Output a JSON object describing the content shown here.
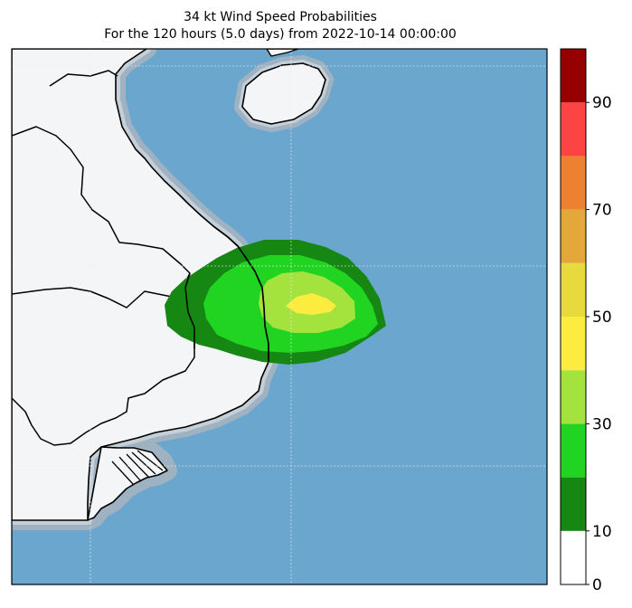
{
  "title": {
    "line1": "34 kt Wind Speed Probabilities",
    "line2": "For the 120 hours (5.0 days) from 2022-10-14 00:00:00"
  },
  "colors": {
    "ocean": "#6aa6cd",
    "land": "#f4f5f7",
    "coast_halo_outer": "#9fb2c2",
    "coast_halo_inner": "#c4cfd8"
  },
  "colorbar": {
    "levels": [
      0,
      10,
      20,
      30,
      40,
      50,
      60,
      70,
      80,
      90,
      100
    ],
    "colors": [
      "#ffffff",
      "#158712",
      "#22d422",
      "#a4e23e",
      "#fcec40",
      "#e8d93c",
      "#e4a83a",
      "#ee8032",
      "#fc4444",
      "#960000",
      "#7c28e0"
    ],
    "tick_labels": [
      "0",
      "10",
      "30",
      "50",
      "70",
      "90"
    ]
  },
  "probability_regions": [
    {
      "level": "0-10",
      "color": "#158712"
    },
    {
      "level": "10-20",
      "color": "#22d422"
    },
    {
      "level": "20-30",
      "color": "#a4e23e"
    },
    {
      "level": "30-40",
      "color": "#fcec40"
    }
  ]
}
